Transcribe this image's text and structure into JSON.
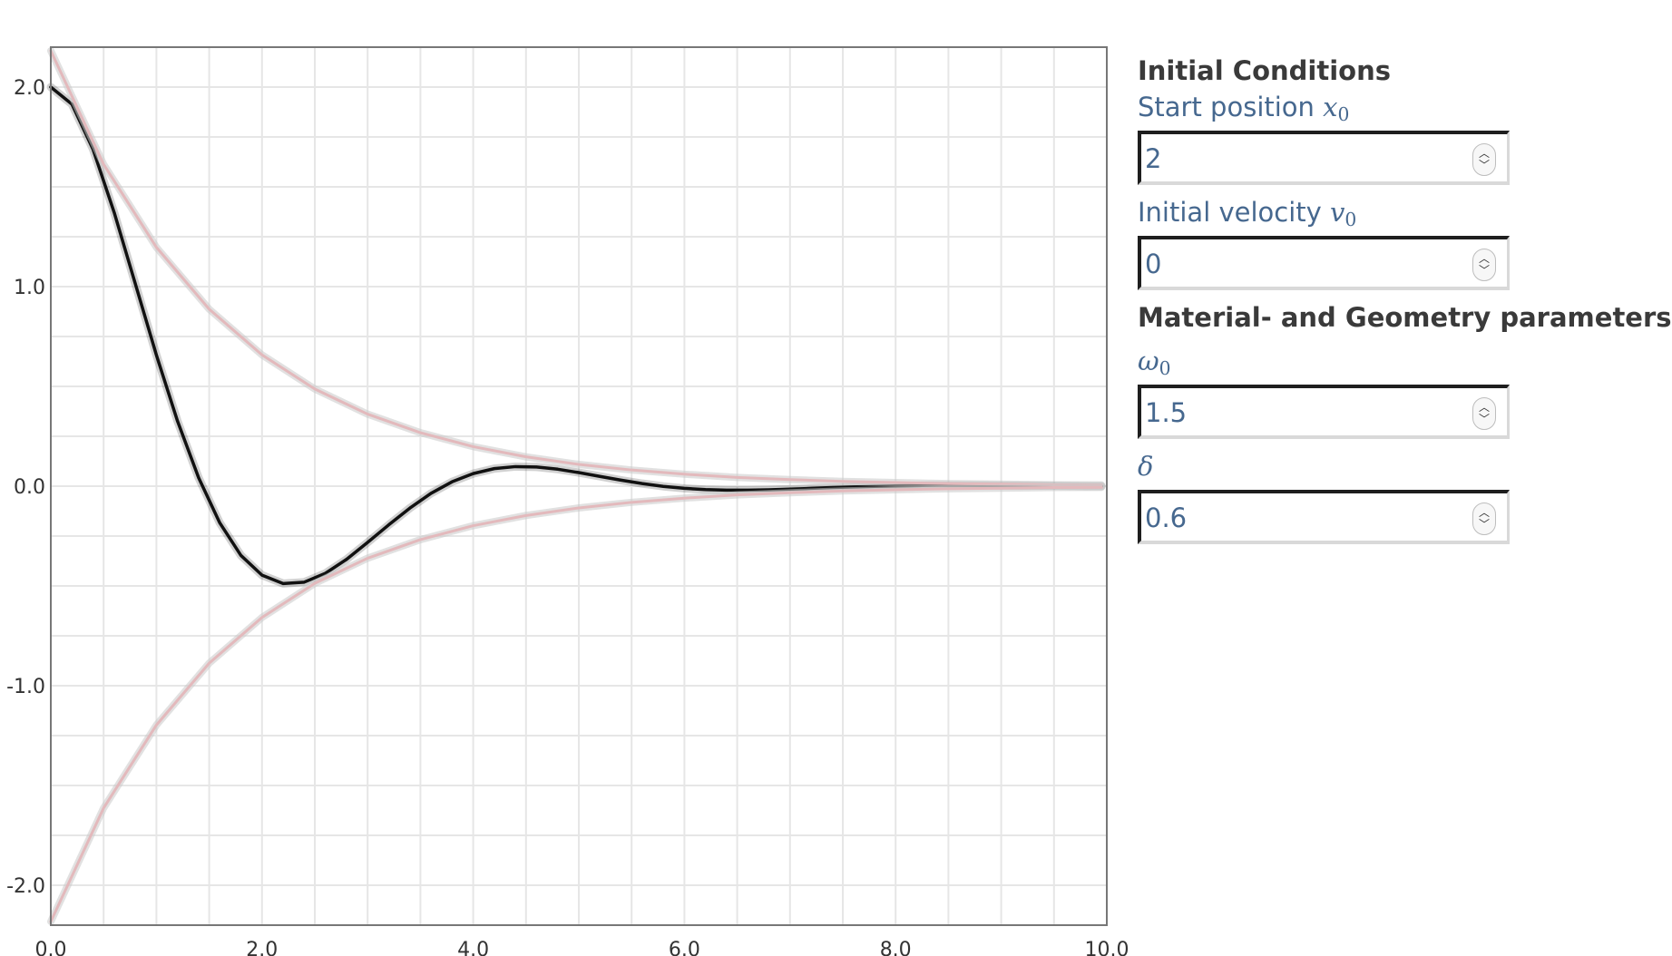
{
  "chart_data": {
    "type": "line",
    "title": "",
    "xlabel": "",
    "ylabel": "",
    "xlim": [
      0,
      10
    ],
    "ylim": [
      -2.2,
      2.2
    ],
    "grid": true,
    "legend": "none",
    "x_ticks": [
      "0.0",
      "2.0",
      "4.0",
      "6.0",
      "8.0",
      "10.0"
    ],
    "y_ticks": [
      "2.0",
      "1.0",
      "0.0",
      "-1.0",
      "-2.0"
    ],
    "x_tick_values": [
      0,
      2,
      4,
      6,
      8,
      10
    ],
    "y_tick_values": [
      2,
      1,
      0,
      -1,
      -2
    ],
    "x_minor_step": 0.5,
    "y_minor_step": 0.25,
    "series": [
      {
        "role": "displacement",
        "color": "#111111",
        "x": [
          0,
          0.2,
          0.4,
          0.6,
          0.8,
          1.0,
          1.2,
          1.4,
          1.6,
          1.8,
          2.0,
          2.2,
          2.4,
          2.6,
          2.8,
          3.0,
          3.2,
          3.4,
          3.6,
          3.8,
          4.0,
          4.2,
          4.4,
          4.6,
          4.8,
          5.0,
          5.2,
          5.4,
          5.6,
          5.8,
          6.0,
          6.2,
          6.4,
          6.6,
          6.8,
          7.0,
          7.2,
          7.4,
          7.6,
          7.8,
          8.0,
          8.2,
          8.4,
          8.6,
          8.8,
          9.0,
          9.2,
          9.4,
          9.6,
          9.8,
          9.95
        ],
        "y": [
          2.0,
          1.914,
          1.688,
          1.372,
          1.015,
          0.657,
          0.326,
          0.042,
          -0.184,
          -0.347,
          -0.446,
          -0.488,
          -0.481,
          -0.437,
          -0.367,
          -0.282,
          -0.194,
          -0.11,
          -0.036,
          0.022,
          0.063,
          0.088,
          0.098,
          0.096,
          0.085,
          0.068,
          0.049,
          0.03,
          0.013,
          -0.001,
          -0.011,
          -0.017,
          -0.02,
          -0.02,
          -0.018,
          -0.015,
          -0.011,
          -0.007,
          -0.004,
          -0.001,
          0.001,
          0.003,
          0.004,
          0.004,
          0.004,
          0.003,
          0.002,
          0.002,
          0.001,
          0.0,
          0.0
        ]
      },
      {
        "role": "upper-envelope",
        "color": "#e3b9bc",
        "x": [
          0,
          0.5,
          1.0,
          1.5,
          2.0,
          2.5,
          3.0,
          3.5,
          4.0,
          4.5,
          5.0,
          5.5,
          6.0,
          6.5,
          7.0,
          7.5,
          8.0,
          8.5,
          9.0,
          9.5,
          9.95
        ],
        "y": [
          2.182,
          1.613,
          1.197,
          0.887,
          0.658,
          0.487,
          0.361,
          0.268,
          0.198,
          0.147,
          0.109,
          0.081,
          0.06,
          0.044,
          0.033,
          0.024,
          0.018,
          0.013,
          0.01,
          0.007,
          0.006
        ]
      },
      {
        "role": "lower-envelope",
        "color": "#e3b9bc",
        "x": [
          0,
          0.5,
          1.0,
          1.5,
          2.0,
          2.5,
          3.0,
          3.5,
          4.0,
          4.5,
          5.0,
          5.5,
          6.0,
          6.5,
          7.0,
          7.5,
          8.0,
          8.5,
          9.0,
          9.5,
          9.95
        ],
        "y": [
          -2.182,
          -1.613,
          -1.197,
          -0.887,
          -0.658,
          -0.487,
          -0.361,
          -0.268,
          -0.198,
          -0.147,
          -0.109,
          -0.081,
          -0.06,
          -0.044,
          -0.033,
          -0.024,
          -0.018,
          -0.013,
          -0.01,
          -0.007,
          -0.006
        ]
      }
    ]
  },
  "panel": {
    "initial_conditions_heading": "Initial Conditions",
    "start_position_label": "Start position ",
    "start_position_symbol": "x",
    "start_position_subscript": "0",
    "start_position_value": "2",
    "initial_velocity_label": "Initial velocity ",
    "initial_velocity_symbol": "v",
    "initial_velocity_subscript": "0",
    "initial_velocity_value": "0",
    "material_heading": "Material- and Geometry parameters",
    "omega_symbol": "ω",
    "omega_subscript": "0",
    "omega_value": "1.5",
    "delta_symbol": "δ",
    "delta_value": "0.6"
  }
}
